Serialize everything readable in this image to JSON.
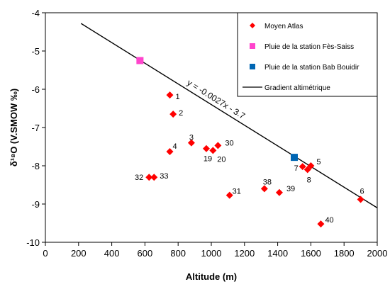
{
  "chart_data": {
    "type": "scatter",
    "xlabel": "Altitude (m)",
    "ylabel": "δ¹⁸O (V.SMOW ‰)",
    "xlim": [
      0,
      2000
    ],
    "ylim": [
      -10,
      -4
    ],
    "xticks": [
      "0",
      "200",
      "400",
      "600",
      "800",
      "1000",
      "1200",
      "1400",
      "1600",
      "1800",
      "2000"
    ],
    "yticks": [
      "-4",
      "-5",
      "-6",
      "-7",
      "-8",
      "-9",
      "-10"
    ],
    "grid": false,
    "legend_position": "top-right",
    "series": [
      {
        "name": "Moyen Atlas",
        "marker": "diamond",
        "color": "#ff0000",
        "points": [
          {
            "label": "1",
            "x": 750,
            "y": -6.15
          },
          {
            "label": "2",
            "x": 770,
            "y": -6.65
          },
          {
            "label": "3",
            "x": 880,
            "y": -7.4
          },
          {
            "label": "4",
            "x": 750,
            "y": -7.63
          },
          {
            "label": "19",
            "x": 970,
            "y": -7.55
          },
          {
            "label": "20",
            "x": 1010,
            "y": -7.6
          },
          {
            "label": "30",
            "x": 1040,
            "y": -7.47
          },
          {
            "label": "32",
            "x": 625,
            "y": -8.3
          },
          {
            "label": "33",
            "x": 655,
            "y": -8.3
          },
          {
            "label": "31",
            "x": 1110,
            "y": -8.77
          },
          {
            "label": "38",
            "x": 1320,
            "y": -8.6
          },
          {
            "label": "39",
            "x": 1410,
            "y": -8.7
          },
          {
            "label": "7",
            "x": 1550,
            "y": -8.02
          },
          {
            "label": "8",
            "x": 1580,
            "y": -8.1
          },
          {
            "label": "5",
            "x": 1600,
            "y": -8.0
          },
          {
            "label": "6",
            "x": 1900,
            "y": -8.88
          },
          {
            "label": "40",
            "x": 1660,
            "y": -9.52
          }
        ]
      },
      {
        "name": "Pluie de la station Fès-Saiss",
        "marker": "square",
        "color": "#ff44cc",
        "points": [
          {
            "x": 570,
            "y": -5.25
          }
        ]
      },
      {
        "name": "Pluie de la station Bab Bouidir",
        "marker": "square",
        "color": "#0066b3",
        "points": [
          {
            "x": 1500,
            "y": -7.78
          }
        ]
      }
    ],
    "trendline": {
      "name": "Gradient altimétrique",
      "equation": "y = -0.0027x - 3.7",
      "slope": -0.0027,
      "intercept": -3.7,
      "x_range": [
        215,
        2000
      ],
      "color": "#000000"
    }
  }
}
